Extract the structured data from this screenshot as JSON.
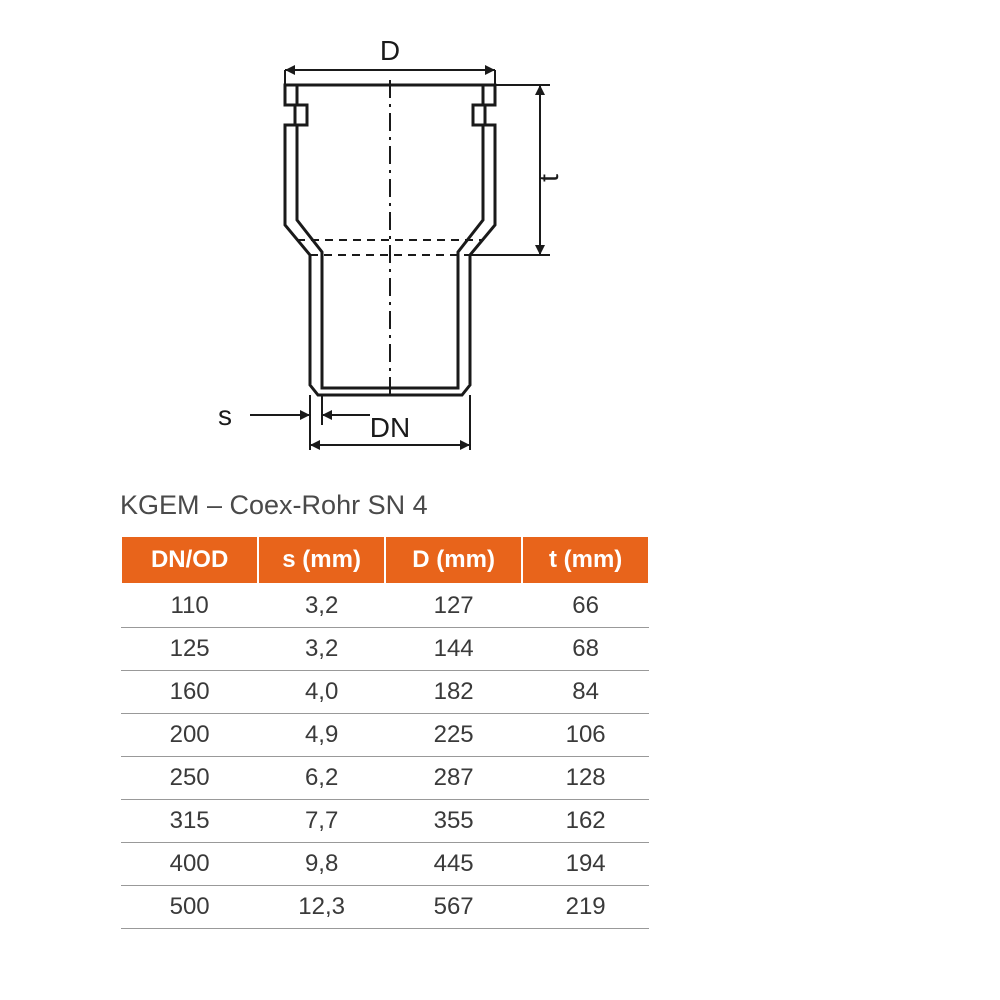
{
  "diagram": {
    "labels": {
      "D": "D",
      "t": "t",
      "s": "s",
      "DN": "DN"
    },
    "stroke_color": "#1a1a1a",
    "stroke_width_main": 3,
    "stroke_width_dim": 2,
    "font_size_label": 28
  },
  "title": "KGEM – Coex-Rohr SN 4",
  "table": {
    "header_bg": "#e8641b",
    "header_fg": "#ffffff",
    "cell_fg": "#3a3a3a",
    "row_border": "#999999",
    "columns": [
      "DN/OD",
      "s (mm)",
      "D (mm)",
      "t (mm)"
    ],
    "rows": [
      [
        "110",
        "3,2",
        "127",
        "66"
      ],
      [
        "125",
        "3,2",
        "144",
        "68"
      ],
      [
        "160",
        "4,0",
        "182",
        "84"
      ],
      [
        "200",
        "4,9",
        "225",
        "106"
      ],
      [
        "250",
        "6,2",
        "287",
        "128"
      ],
      [
        "315",
        "7,7",
        "355",
        "162"
      ],
      [
        "400",
        "9,8",
        "445",
        "194"
      ],
      [
        "500",
        "12,3",
        "567",
        "219"
      ]
    ]
  }
}
